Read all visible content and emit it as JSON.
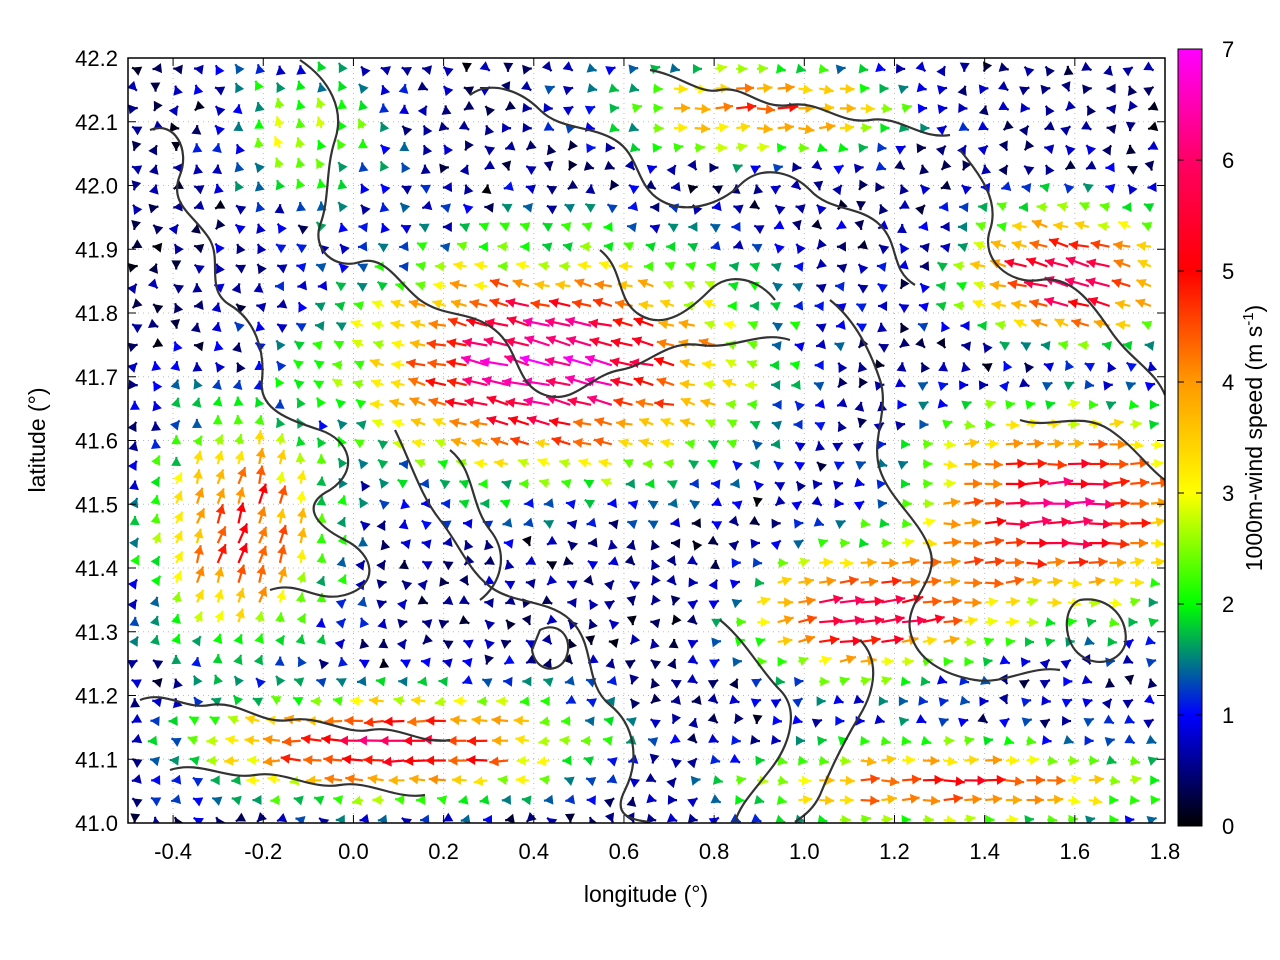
{
  "chart_data": {
    "type": "vector-field",
    "title": "",
    "xlabel": "longitude (°)",
    "ylabel": "latitude (°)",
    "xlim": [
      -0.5,
      1.8
    ],
    "ylim": [
      41.0,
      42.2
    ],
    "xticks": [
      "-0.4",
      "-0.2",
      "0.0",
      "0.2",
      "0.4",
      "0.6",
      "0.8",
      "1.0",
      "1.2",
      "1.4",
      "1.6",
      "1.8"
    ],
    "yticks": [
      "41.0",
      "41.1",
      "41.2",
      "41.3",
      "41.4",
      "41.5",
      "41.6",
      "41.7",
      "41.8",
      "41.9",
      "42.0",
      "42.1",
      "42.2"
    ],
    "grid": "dotted",
    "colorbar": {
      "label": "1000m-wind speed (m s-1)",
      "label_main": "1000m-wind speed (m s",
      "label_sup": "-1",
      "label_close": ")",
      "range": [
        0,
        7
      ],
      "ticks": [
        "0",
        "1",
        "2",
        "3",
        "4",
        "5",
        "6",
        "7"
      ],
      "colors": [
        "#000000",
        "#0000ff",
        "#00ff00",
        "#ffff00",
        "#ff8000",
        "#ff0000",
        "#ff00ff"
      ]
    },
    "series": [
      {
        "kind": "wind-vectors",
        "regions": [
          {
            "lon": [
              0.05,
              1.0
            ],
            "lat": [
              41.45,
              41.95
            ],
            "dir": "west-northwest",
            "speed": 6.5
          },
          {
            "lon": [
              1.2,
              1.8
            ],
            "lat": [
              41.25,
              41.65
            ],
            "dir": "east",
            "speed": 5.5
          },
          {
            "lon": [
              -0.5,
              0.6
            ],
            "lat": [
              41.0,
              41.25
            ],
            "dir": "west",
            "speed": 5.5
          },
          {
            "lon": [
              0.6,
              1.8
            ],
            "lat": [
              41.0,
              41.2
            ],
            "dir": "east",
            "speed": 4.5
          },
          {
            "lon": [
              -0.5,
              0.05
            ],
            "lat": [
              41.25,
              41.55
            ],
            "dir": "north-northeast",
            "speed": 5.0
          },
          {
            "lon": [
              -0.35,
              0.05
            ],
            "lat": [
              41.95,
              42.2
            ],
            "dir": "north-northwest",
            "speed": 2.8
          },
          {
            "lon": [
              1.4,
              1.8
            ],
            "lat": [
              41.7,
              41.95
            ],
            "dir": "west-northwest",
            "speed": 6.5
          },
          {
            "lon": [
              0.6,
              1.2
            ],
            "lat": [
              41.85,
              42.2
            ],
            "dir": "west-east variable",
            "speed": 2.5
          }
        ]
      },
      {
        "kind": "terrain-contours",
        "color": "#333333"
      }
    ]
  }
}
